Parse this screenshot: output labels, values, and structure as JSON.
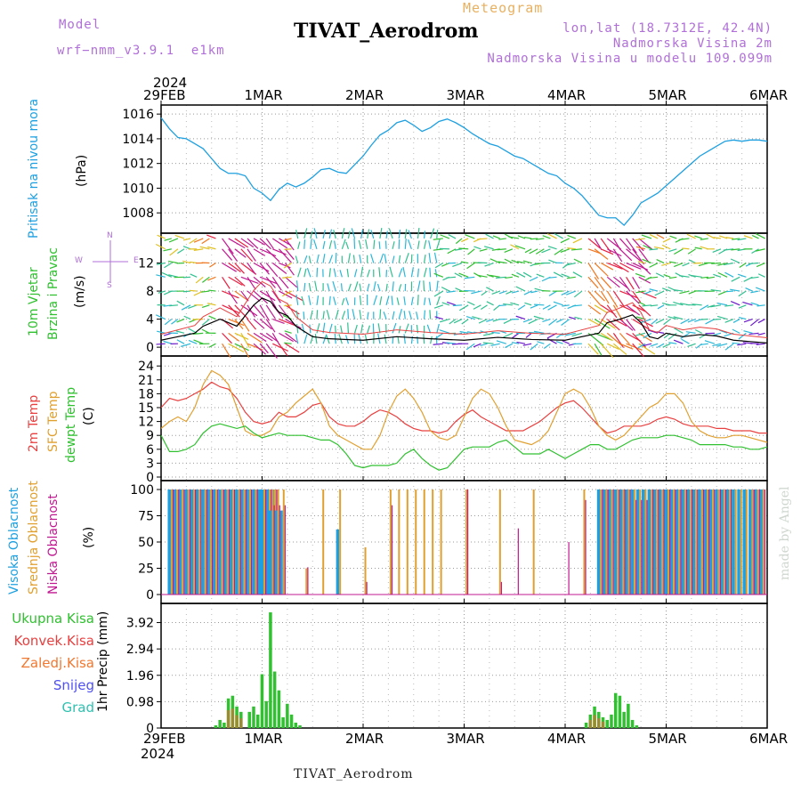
{
  "header": {
    "model_label": "Model",
    "model_name": "wrf−nmm_v3.9.1  e1km",
    "title": "TIVAT_Aerodrom",
    "meteogram_label": "Meteogram",
    "lonlat": "lon,lat (18.7312E, 42.4N)",
    "elevation": "Nadmorska Visina 2m",
    "model_elevation": "Nadmorska Visina u modelu 109.099m"
  },
  "dates": {
    "year": "2024",
    "ticks": [
      "29FEB",
      "1MAR",
      "2MAR",
      "3MAR",
      "4MAR",
      "5MAR",
      "6MAR"
    ]
  },
  "footer": {
    "station": "TIVAT_Aerodrom",
    "made_by": "made by Angel"
  },
  "colors": {
    "pressure": "#1ea0e0",
    "temp2m": "#e84040",
    "sfc": "#e0a030",
    "dew": "#30c030",
    "high_cloud": "#1ea0e0",
    "mid_cloud": "#e0a030",
    "low_cloud": "#c01890",
    "total_precip": "#30c030",
    "conv_precip": "#e84040",
    "frz_precip": "#f07830",
    "snow": "#5050f0",
    "graupel": "#30c0b0"
  },
  "chart_data": [
    {
      "type": "line",
      "name": "pressure",
      "ylabel_1": "Pritisak na nivou mora",
      "ylabel_2": "(hPa)",
      "ylim": [
        1006.5,
        1016.3
      ],
      "yticks": [
        1008,
        1010,
        1012,
        1014,
        1016
      ],
      "x_hours": [
        0,
        2,
        4,
        6,
        8,
        10,
        12,
        14,
        16,
        18,
        20,
        22,
        24,
        26,
        28,
        30,
        32,
        34,
        36,
        38,
        40,
        42,
        44,
        46,
        48,
        50,
        52,
        54,
        56,
        58,
        60,
        62,
        64,
        66,
        68,
        70,
        72,
        74,
        76,
        78,
        80,
        82,
        84,
        86,
        88,
        90,
        92,
        94,
        96,
        98,
        100,
        102,
        104,
        106,
        108,
        110,
        112,
        114,
        116,
        118,
        120,
        122,
        124,
        126,
        128,
        130,
        132,
        134,
        136,
        138,
        140,
        142,
        144
      ],
      "values": [
        1015.7,
        1014.8,
        1014.1,
        1014.0,
        1013.6,
        1013.2,
        1012.4,
        1011.6,
        1011.2,
        1011.2,
        1011.0,
        1010.0,
        1009.6,
        1009.0,
        1009.9,
        1010.4,
        1010.1,
        1010.4,
        1010.9,
        1011.5,
        1011.6,
        1011.3,
        1011.2,
        1011.9,
        1012.6,
        1013.5,
        1014.3,
        1014.7,
        1015.3,
        1015.5,
        1015.1,
        1014.6,
        1014.9,
        1015.4,
        1015.6,
        1015.3,
        1014.9,
        1014.4,
        1014.0,
        1013.6,
        1013.4,
        1013.0,
        1012.6,
        1012.4,
        1012.0,
        1011.6,
        1011.2,
        1011.0,
        1010.4,
        1010.0,
        1009.4,
        1008.6,
        1007.8,
        1007.6,
        1007.6,
        1007.0,
        1007.8,
        1008.8,
        1009.2,
        1009.6,
        1010.2,
        1010.8,
        1011.4,
        1012.0,
        1012.6,
        1013.0,
        1013.4,
        1013.8,
        1013.9,
        1013.8,
        1013.9,
        1013.9,
        1013.8
      ]
    },
    {
      "type": "scatter",
      "name": "wind",
      "ylabel_1": "10m Vjetar",
      "ylabel_2": "Brzina i Pravac",
      "ylabel_3": "(m/s)",
      "ylim": [
        -1,
        16
      ],
      "yticks": [
        0,
        4,
        8,
        12
      ],
      "compass": {
        "n": "N",
        "s": "S",
        "e": "E",
        "w": "W"
      },
      "x_hours": [
        0,
        4,
        8,
        10,
        12,
        14,
        16,
        18,
        20,
        22,
        24,
        26,
        28,
        30,
        32,
        36,
        40,
        48,
        56,
        64,
        72,
        80,
        88,
        96,
        104,
        106,
        108,
        110,
        112,
        114,
        116,
        118,
        120,
        124,
        128,
        132,
        136,
        140,
        144
      ],
      "speed": [
        1.0,
        1.5,
        2.0,
        3.0,
        3.5,
        4.0,
        3.5,
        3.0,
        4.5,
        6.0,
        7.0,
        6.5,
        5.0,
        4.5,
        3.0,
        1.5,
        1.2,
        1.0,
        1.5,
        1.2,
        1.0,
        1.4,
        1.1,
        1.0,
        2.0,
        3.5,
        3.8,
        4.2,
        4.6,
        3.5,
        1.5,
        1.2,
        2.0,
        1.5,
        1.8,
        1.6,
        1.0,
        0.8,
        0.6
      ]
    },
    {
      "type": "line",
      "name": "temperature",
      "ylabel_1": "2m Temp",
      "ylabel_2": "SFC Temp",
      "ylabel_3": "dewpt Temp",
      "ylabel_4": "(C)",
      "ylim": [
        0,
        25
      ],
      "yticks": [
        0,
        3,
        6,
        9,
        12,
        15,
        18,
        21,
        24
      ],
      "x_hours": [
        0,
        2,
        4,
        6,
        8,
        10,
        12,
        14,
        16,
        18,
        20,
        22,
        24,
        26,
        28,
        30,
        32,
        34,
        36,
        38,
        40,
        42,
        44,
        46,
        48,
        50,
        52,
        54,
        56,
        58,
        60,
        62,
        64,
        66,
        68,
        70,
        72,
        74,
        76,
        78,
        80,
        82,
        84,
        86,
        88,
        90,
        92,
        94,
        96,
        98,
        100,
        102,
        104,
        106,
        108,
        110,
        112,
        114,
        116,
        118,
        120,
        122,
        124,
        126,
        128,
        130,
        132,
        134,
        136,
        138,
        140,
        142,
        144
      ],
      "series": [
        {
          "name": "2m Temp",
          "values": [
            15,
            17,
            16.5,
            17,
            18,
            19,
            20.5,
            19.5,
            19,
            17,
            14,
            12,
            11.5,
            12,
            14,
            13,
            13,
            14,
            15.5,
            16,
            13,
            11.5,
            11,
            11,
            12,
            13.5,
            14.5,
            14,
            13,
            11.5,
            10.5,
            10,
            10,
            9.5,
            10,
            12,
            13.5,
            14.5,
            13,
            12,
            11,
            10,
            10,
            10,
            11,
            12,
            13.5,
            15,
            16,
            16.5,
            15,
            13,
            11,
            9.5,
            10,
            11,
            11,
            11,
            11.5,
            12.5,
            13,
            12.5,
            11.5,
            11,
            11,
            11,
            10.5,
            10.5,
            10,
            10,
            10,
            9.5,
            9.5
          ]
        },
        {
          "name": "SFC Temp",
          "values": [
            10.5,
            12,
            13,
            12,
            15,
            20,
            23,
            22,
            20,
            15,
            10,
            9,
            9,
            10,
            13,
            14,
            16,
            17.5,
            19,
            16,
            11,
            9,
            8,
            7,
            6,
            6,
            9,
            14,
            17.5,
            19,
            17,
            14,
            10,
            8.5,
            8,
            9,
            13,
            17,
            19,
            18,
            15,
            11,
            8,
            7.5,
            7,
            8,
            10,
            14,
            18,
            19,
            18,
            15,
            11,
            9,
            8,
            9,
            11,
            13,
            15,
            16,
            18,
            18,
            16,
            12,
            10,
            9,
            8.5,
            8.5,
            9,
            9,
            8.5,
            8,
            7.5
          ]
        },
        {
          "name": "dewpt Temp",
          "values": [
            9,
            5.5,
            5.5,
            6,
            7,
            9.5,
            11,
            11.5,
            11,
            10.5,
            11,
            9.5,
            8.5,
            9,
            9.5,
            9,
            9,
            9,
            8.5,
            8,
            8,
            7,
            5,
            2.5,
            2,
            2.5,
            2.5,
            2.5,
            3,
            5,
            6,
            4,
            2.5,
            1.5,
            2,
            4,
            6,
            6.5,
            6.5,
            6.5,
            7.5,
            8,
            6.5,
            5,
            5,
            5,
            6,
            5,
            4,
            5,
            6,
            7,
            7,
            6,
            6,
            7,
            8,
            8.5,
            8.5,
            8.5,
            9,
            9,
            8.5,
            8,
            7,
            7,
            7,
            7,
            6.5,
            6.5,
            6,
            6,
            6.5
          ]
        }
      ]
    },
    {
      "type": "bar",
      "name": "clouds",
      "ylabel_1": "Visoka Oblacnost",
      "ylabel_2": "Srednja Oblacnost",
      "ylabel_3": "Niska Oblacnost",
      "ylabel_4": "(%)",
      "ylim": [
        0,
        100
      ],
      "yticks": [
        0,
        25,
        50,
        75,
        100
      ],
      "x_hours": [
        2,
        6,
        10,
        14,
        18,
        22,
        24,
        26,
        34,
        38,
        42,
        48,
        54,
        56,
        58,
        60,
        62,
        64,
        66,
        72,
        80,
        84,
        88,
        96,
        100,
        104,
        108,
        112,
        116,
        120,
        124,
        128,
        132,
        136,
        140
      ],
      "series": [
        {
          "name": "Visoka Oblacnost",
          "values": [
            100,
            100,
            100,
            100,
            100,
            100,
            100,
            80,
            0,
            0,
            62,
            0,
            0,
            0,
            0,
            0,
            0,
            0,
            0,
            0,
            0,
            0,
            0,
            0,
            0,
            100,
            100,
            100,
            100,
            100,
            100,
            100,
            100,
            100,
            100
          ]
        },
        {
          "name": "Srednja Oblacnost",
          "values": [
            100,
            100,
            100,
            100,
            100,
            100,
            100,
            100,
            25,
            100,
            100,
            45,
            100,
            100,
            100,
            100,
            100,
            100,
            100,
            100,
            100,
            0,
            100,
            0,
            100,
            100,
            100,
            100,
            100,
            100,
            100,
            100,
            100,
            100,
            100
          ]
        },
        {
          "name": "Niska Oblacnost",
          "values": [
            100,
            100,
            100,
            100,
            100,
            100,
            100,
            85,
            26,
            0,
            0,
            12,
            85,
            0,
            0,
            0,
            0,
            0,
            0,
            100,
            12,
            63,
            0,
            50,
            90,
            100,
            100,
            90,
            100,
            100,
            100,
            100,
            100,
            0,
            100
          ]
        }
      ]
    },
    {
      "type": "bar",
      "name": "precipitation",
      "ylabel_1": "1hr Precip (mm)",
      "legend": [
        "Ukupna Kisa",
        "Konvek.Kisa",
        "Zaledj.Kisa",
        "Snijeg",
        "Grad"
      ],
      "ylim": [
        0,
        4.5
      ],
      "yticks": [
        0,
        0.98,
        1.96,
        2.94,
        3.92
      ],
      "x_hours": [
        13,
        14,
        15,
        16,
        17,
        18,
        19,
        21,
        22,
        23,
        24,
        25,
        26,
        27,
        28,
        29,
        30,
        31,
        32,
        33,
        101,
        102,
        103,
        104,
        105,
        106,
        107,
        108,
        109,
        110,
        111,
        112,
        113
      ],
      "values": [
        0.1,
        0.3,
        0.2,
        1.1,
        1.2,
        0.8,
        0.6,
        0.6,
        0.8,
        0.5,
        2.0,
        1.0,
        4.3,
        2.1,
        1.4,
        0.4,
        0.9,
        0.5,
        0.2,
        0.1,
        0.2,
        0.5,
        0.8,
        0.6,
        0.4,
        0.3,
        0.5,
        1.3,
        1.2,
        0.6,
        0.9,
        0.3,
        0.1
      ]
    }
  ]
}
